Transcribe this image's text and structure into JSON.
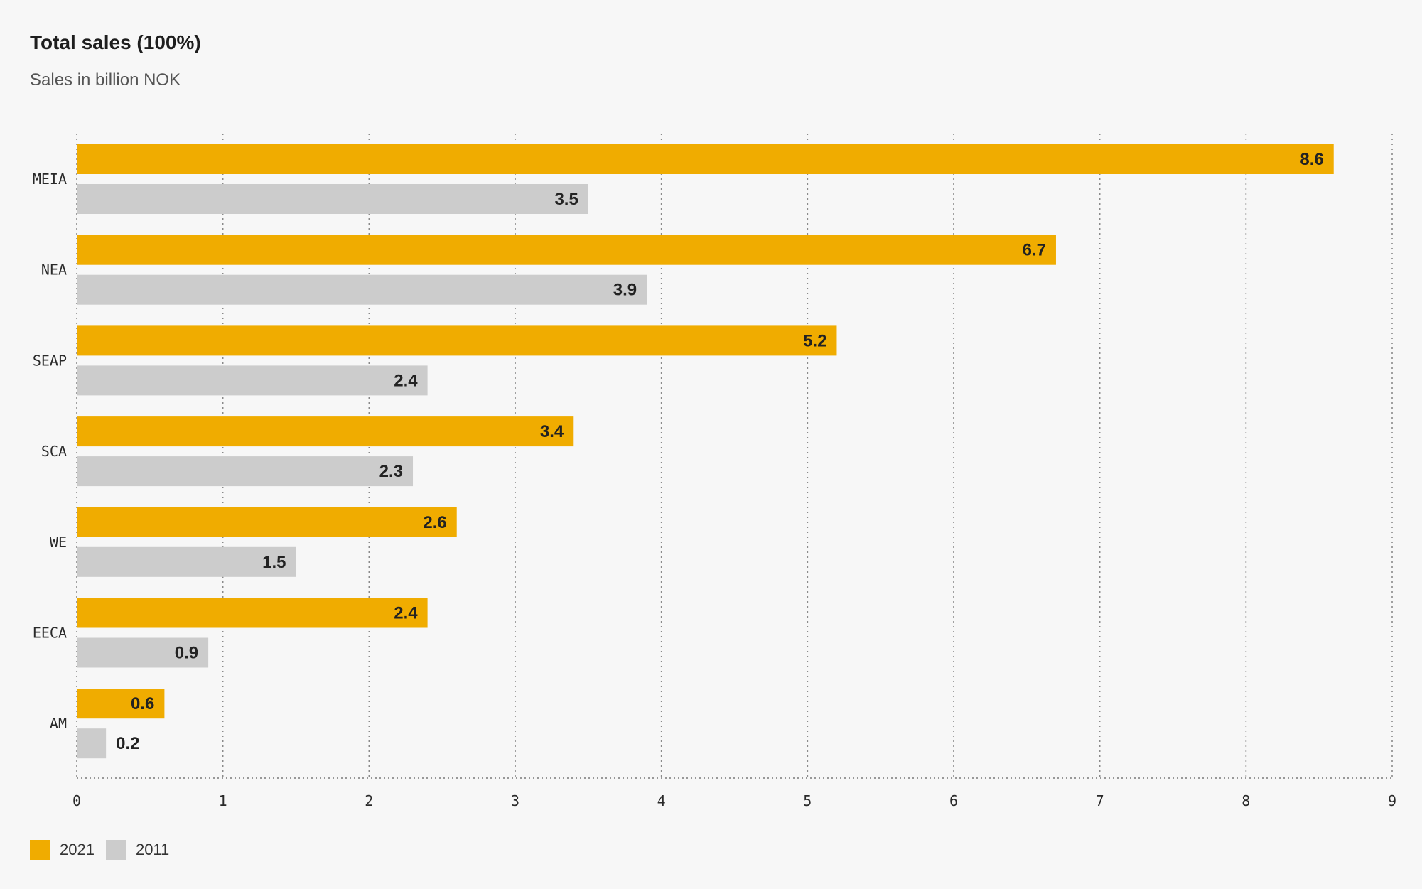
{
  "chart_data": {
    "type": "bar",
    "orientation": "horizontal",
    "title": "Total sales (100%)",
    "subtitle": "Sales in billion NOK",
    "categories": [
      "MEIA",
      "NEA",
      "SEAP",
      "SCA",
      "WE",
      "EECA",
      "AM"
    ],
    "series": [
      {
        "name": "2021",
        "color": "#f0ac00",
        "values": [
          8.6,
          6.7,
          5.2,
          3.4,
          2.6,
          2.4,
          0.6
        ]
      },
      {
        "name": "2011",
        "color": "#cccccc",
        "values": [
          3.5,
          3.9,
          2.4,
          2.3,
          1.5,
          0.9,
          0.2
        ]
      }
    ],
    "xlim": [
      0,
      9
    ],
    "xticks": [
      "0",
      "1",
      "2",
      "3",
      "4",
      "5",
      "6",
      "7",
      "8",
      "9"
    ],
    "grid": "vertical-dotted",
    "legend_position": "bottom-left"
  }
}
